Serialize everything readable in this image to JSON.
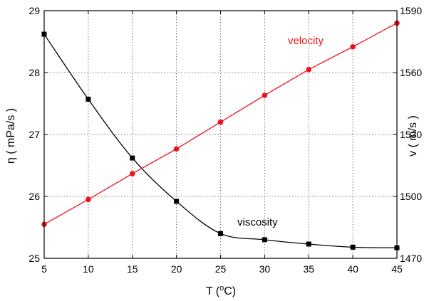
{
  "chart_data": {
    "type": "line",
    "x": [
      5,
      10,
      15,
      20,
      25,
      30,
      35,
      40,
      45
    ],
    "xlabel": "T (°C)",
    "xlim": [
      5,
      45
    ],
    "xticks": [
      "5",
      "10",
      "15",
      "20",
      "25",
      "30",
      "35",
      "40",
      "45"
    ],
    "ylabel_left": "η ( mPa/s )",
    "ylim_left": [
      25,
      29
    ],
    "yticks_left": [
      "25",
      "26",
      "27",
      "28",
      "29"
    ],
    "ylabel_right": "v ( m/s )",
    "ylim_right": [
      1470,
      1590
    ],
    "yticks_right": [
      "1470",
      "1500",
      "1530",
      "1560",
      "1590"
    ],
    "grid": true,
    "series": [
      {
        "name": "viscosity",
        "axis": "left",
        "color": "#000000",
        "marker": "square",
        "values": [
          28.62,
          27.57,
          26.62,
          25.92,
          25.4,
          25.3,
          25.23,
          25.18,
          25.17
        ]
      },
      {
        "name": "velocity",
        "axis": "right",
        "color": "#e8141c",
        "marker": "circle",
        "values": [
          1486.5,
          1498.5,
          1511.0,
          1523.0,
          1536.0,
          1549.0,
          1561.5,
          1572.5,
          1584.0
        ]
      }
    ]
  }
}
